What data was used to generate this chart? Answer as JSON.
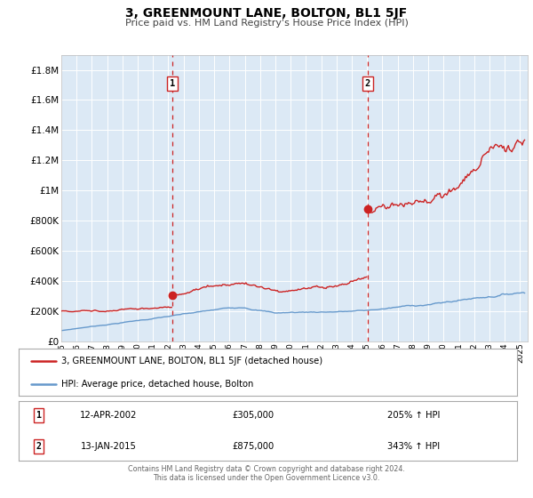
{
  "title": "3, GREENMOUNT LANE, BOLTON, BL1 5JF",
  "subtitle": "Price paid vs. HM Land Registry's House Price Index (HPI)",
  "background_color": "#ffffff",
  "plot_bg_color": "#dce9f5",
  "grid_color": "#c8d8e8",
  "hpi_line_color": "#6699cc",
  "price_line_color": "#cc2222",
  "dashed_line_color": "#cc2222",
  "marker_color": "#cc2222",
  "ylim": [
    0,
    1900000
  ],
  "yticks": [
    0,
    200000,
    400000,
    600000,
    800000,
    1000000,
    1200000,
    1400000,
    1600000,
    1800000
  ],
  "ytick_labels": [
    "£0",
    "£200K",
    "£400K",
    "£600K",
    "£800K",
    "£1M",
    "£1.2M",
    "£1.4M",
    "£1.6M",
    "£1.8M"
  ],
  "xmin": 1995.0,
  "xmax": 2025.5,
  "sale1_x": 2002.28,
  "sale1_y": 305000,
  "sale1_label": "1",
  "sale1_date": "12-APR-2002",
  "sale1_price": "£305,000",
  "sale1_hpi": "205% ↑ HPI",
  "sale2_x": 2015.04,
  "sale2_y": 875000,
  "sale2_label": "2",
  "sale2_date": "13-JAN-2015",
  "sale2_price": "£875,000",
  "sale2_hpi": "343% ↑ HPI",
  "legend_line1": "3, GREENMOUNT LANE, BOLTON, BL1 5JF (detached house)",
  "legend_line2": "HPI: Average price, detached house, Bolton",
  "footer1": "Contains HM Land Registry data © Crown copyright and database right 2024.",
  "footer2": "This data is licensed under the Open Government Licence v3.0."
}
